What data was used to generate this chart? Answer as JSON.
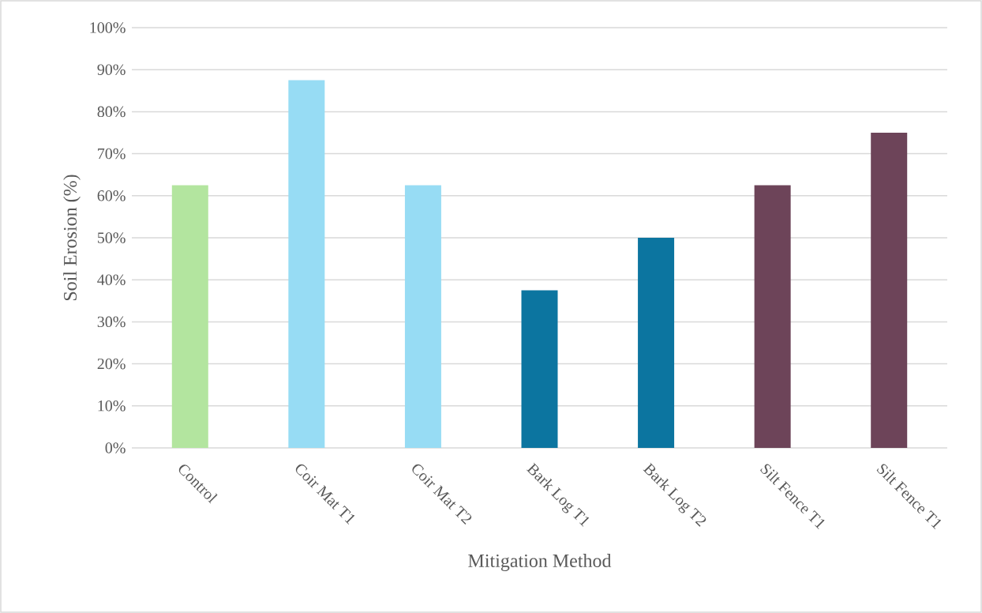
{
  "chart_data": {
    "type": "bar",
    "xlabel": "Mitigation Method",
    "ylabel": "Soil Erosion (%)",
    "categories": [
      "Control",
      "Coir Mat T1",
      "Coir Mat T2",
      "Bark Log T1",
      "Bark Log T2",
      "Silt Fence T1",
      "Silt Fence T1"
    ],
    "values": [
      62.5,
      87.5,
      62.5,
      37.5,
      50,
      62.5,
      75
    ],
    "colors": [
      "#b3e59f",
      "#97dcf4",
      "#97dcf4",
      "#0c75a0",
      "#0c75a0",
      "#6d4459",
      "#6d4459"
    ],
    "ylim": [
      0,
      100
    ],
    "yticks": [
      {
        "value": 0,
        "label": "0%"
      },
      {
        "value": 10,
        "label": "10%"
      },
      {
        "value": 20,
        "label": "20%"
      },
      {
        "value": 30,
        "label": "30%"
      },
      {
        "value": 40,
        "label": "40%"
      },
      {
        "value": 50,
        "label": "50%"
      },
      {
        "value": 60,
        "label": "60%"
      },
      {
        "value": 70,
        "label": "70%"
      },
      {
        "value": 80,
        "label": "80%"
      },
      {
        "value": 90,
        "label": "90%"
      },
      {
        "value": 100,
        "label": "100%"
      }
    ],
    "grid": "y"
  }
}
